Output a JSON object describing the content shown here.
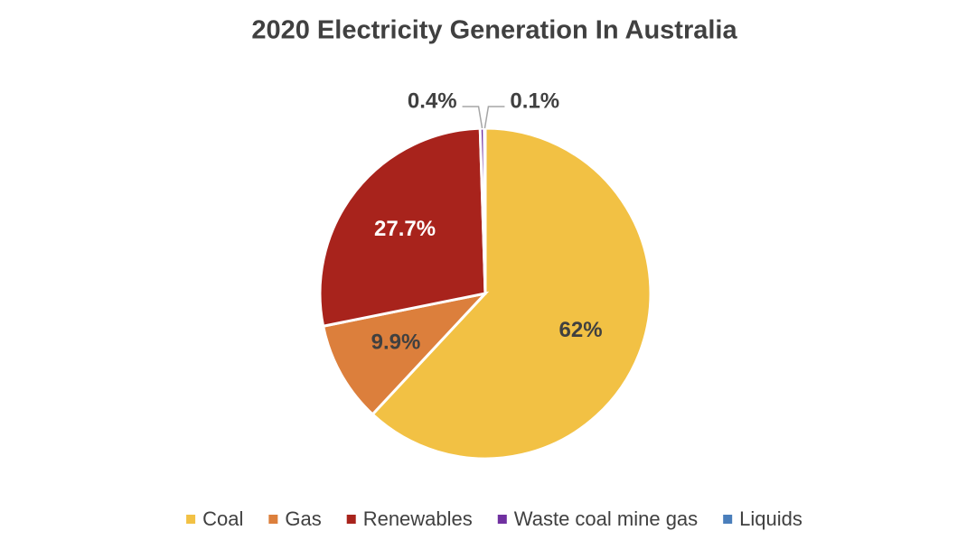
{
  "chart_data": {
    "type": "pie",
    "title": "2020 Electricity Generation In Australia",
    "categories": [
      "Coal",
      "Gas",
      "Renewables",
      "Waste coal mine gas",
      "Liquids"
    ],
    "values": [
      62,
      9.9,
      27.7,
      0.4,
      0.1
    ],
    "value_labels": [
      "62%",
      "9.9%",
      "27.7%",
      "0.4%",
      "0.1%"
    ],
    "colors": [
      "#f2c144",
      "#dc7f3c",
      "#a8231c",
      "#7030a0",
      "#4a7ebb"
    ],
    "legend": "bottom"
  }
}
